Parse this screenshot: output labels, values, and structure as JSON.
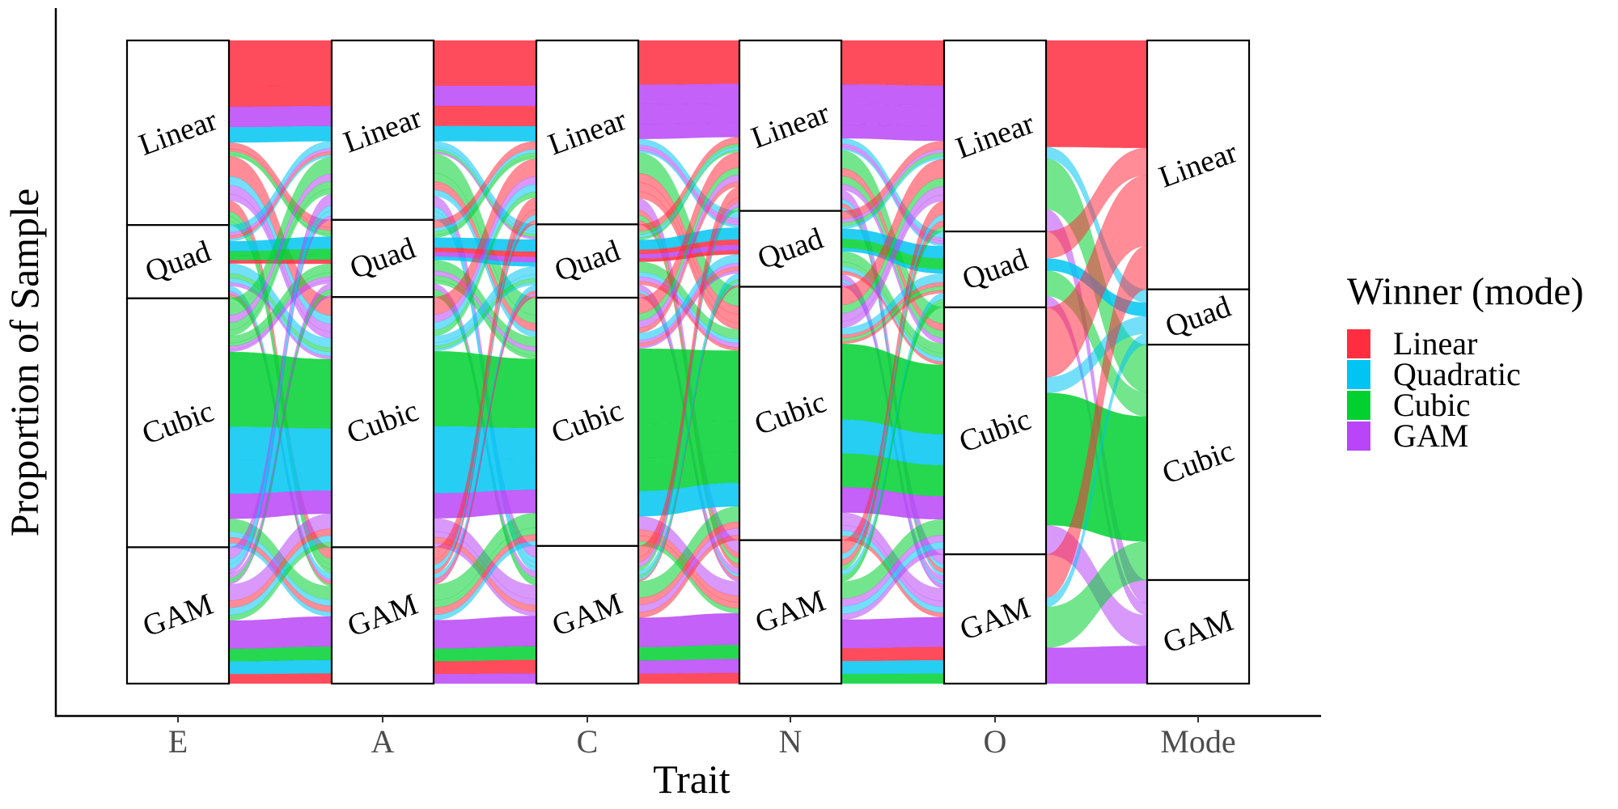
{
  "chart_data": {
    "type": "alluvial",
    "title": "",
    "xlabel": "Trait",
    "ylabel": "Proportion of Sample",
    "grid": false,
    "axes": [
      "E",
      "A",
      "C",
      "N",
      "O",
      "Mode"
    ],
    "strata_order": [
      "Linear",
      "Quad",
      "Cubic",
      "GAM"
    ],
    "strata_proportions": {
      "E": {
        "Linear": 0.287,
        "Quad": 0.114,
        "Cubic": 0.387,
        "GAM": 0.212
      },
      "A": {
        "Linear": 0.279,
        "Quad": 0.12,
        "Cubic": 0.389,
        "GAM": 0.212
      },
      "C": {
        "Linear": 0.286,
        "Quad": 0.114,
        "Cubic": 0.386,
        "GAM": 0.214
      },
      "N": {
        "Linear": 0.265,
        "Quad": 0.118,
        "Cubic": 0.394,
        "GAM": 0.223
      },
      "O": {
        "Linear": 0.297,
        "Quad": 0.118,
        "Cubic": 0.384,
        "GAM": 0.201
      },
      "Mode": {
        "Linear": 0.387,
        "Quad": 0.086,
        "Cubic": 0.366,
        "GAM": 0.161
      }
    },
    "legend": {
      "title": "Winner (mode)",
      "position": "right",
      "entries": [
        {
          "key": "Linear",
          "label": "Linear",
          "color": "#FF2D3F"
        },
        {
          "key": "Quad",
          "label": "Quadratic",
          "color": "#00C5F2"
        },
        {
          "key": "Cubic",
          "label": "Cubic",
          "color": "#00D130"
        },
        {
          "key": "GAM",
          "label": "GAM",
          "color": "#B845F7"
        }
      ]
    },
    "fill_by": "Mode"
  }
}
